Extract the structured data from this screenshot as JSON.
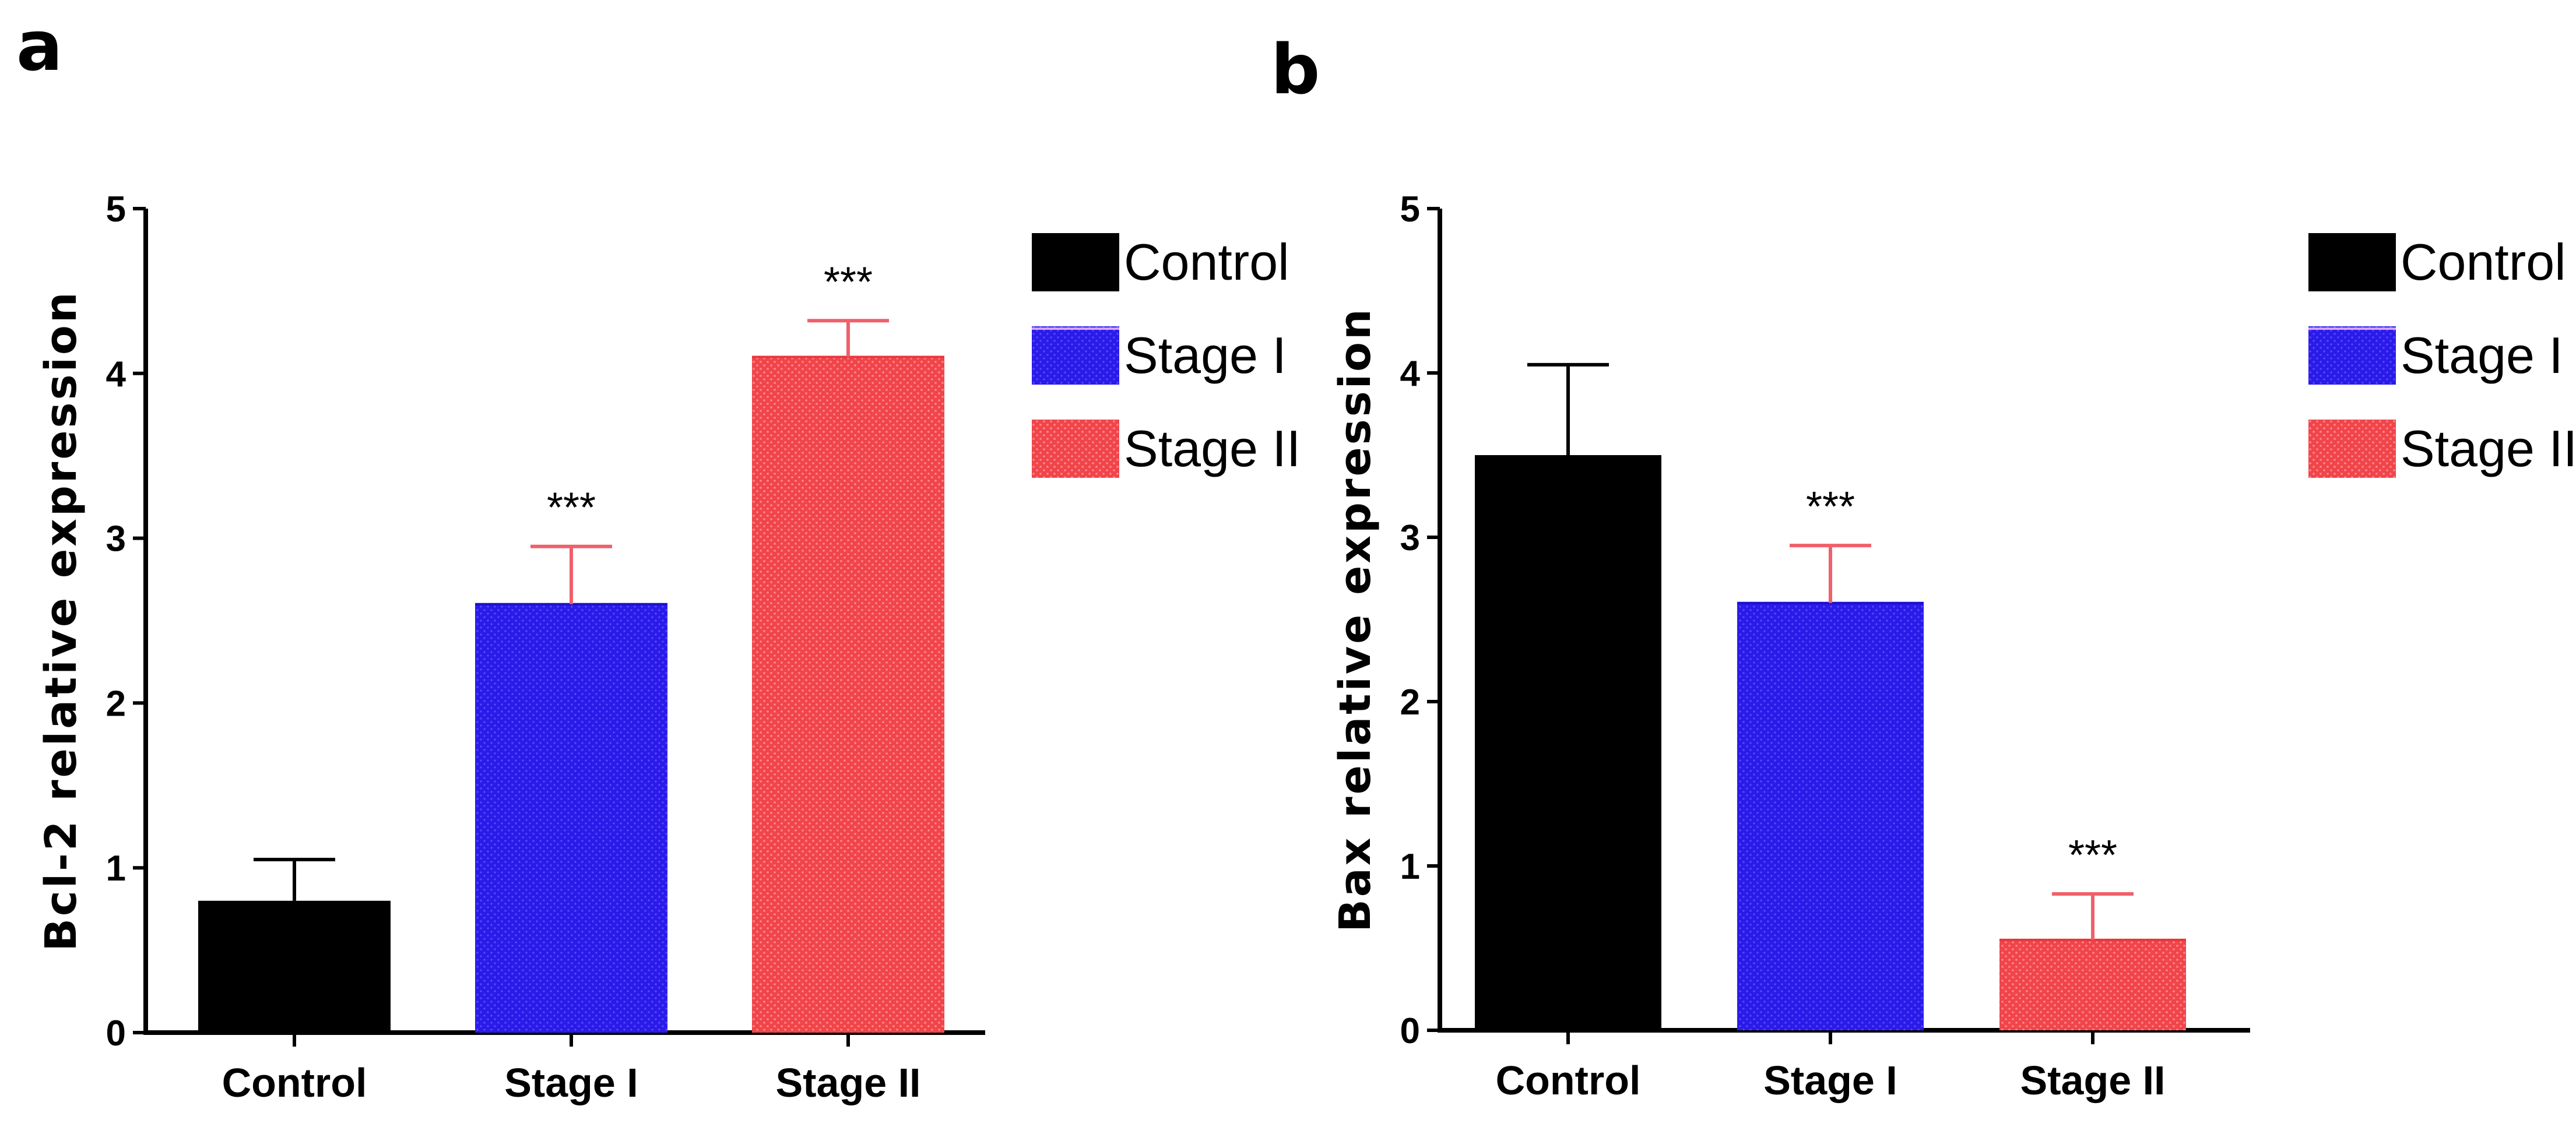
{
  "chart_data": [
    {
      "panel": "a",
      "type": "bar",
      "title": "",
      "xlabel": "",
      "ylabel": "Bcl-2 relative expression",
      "ylim": [
        0,
        5
      ],
      "yticks": [
        0,
        1,
        2,
        3,
        4,
        5
      ],
      "grid": false,
      "legend": "right",
      "categories": [
        "Control",
        "Stage I",
        "Stage II"
      ],
      "values": [
        0.8,
        2.6,
        4.1
      ],
      "errors": [
        0.25,
        0.35,
        0.22
      ],
      "significance": [
        "",
        "***",
        "***"
      ],
      "colors": [
        "#000000",
        "#2b1be8",
        "#f0454a"
      ],
      "error_colors": [
        "#000000",
        "#f0606a",
        "#f0606a"
      ]
    },
    {
      "panel": "b",
      "type": "bar",
      "title": "",
      "xlabel": "",
      "ylabel": "Bax relative expression",
      "ylim": [
        0,
        5
      ],
      "yticks": [
        0,
        1,
        2,
        3,
        4,
        5
      ],
      "grid": false,
      "legend": "right",
      "categories": [
        "Control",
        "Stage I",
        "Stage II"
      ],
      "values": [
        3.5,
        2.6,
        0.55
      ],
      "errors": [
        0.55,
        0.35,
        0.28
      ],
      "significance": [
        "",
        "***",
        "***"
      ],
      "colors": [
        "#000000",
        "#2b1be8",
        "#f0454a"
      ],
      "error_colors": [
        "#000000",
        "#f0606a",
        "#f0606a"
      ]
    }
  ],
  "legend": {
    "items": [
      {
        "label": "Control",
        "color": "#000000"
      },
      {
        "label": "Stage I",
        "color": "#2b1be8"
      },
      {
        "label": "Stage II",
        "color": "#f0454a"
      }
    ]
  }
}
